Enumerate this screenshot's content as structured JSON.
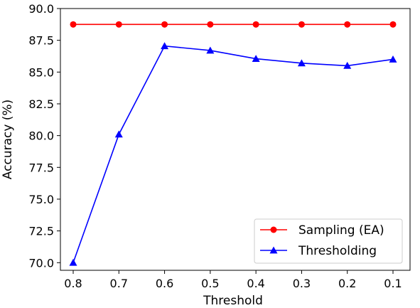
{
  "chart_data": {
    "type": "line",
    "xlabel": "Threshold",
    "ylabel": "Accuracy (%)",
    "categories": [
      "0.8",
      "0.7",
      "0.6",
      "0.5",
      "0.4",
      "0.3",
      "0.2",
      "0.1"
    ],
    "ylim": [
      69.4,
      90.0
    ],
    "yticks": [
      "70.0",
      "72.5",
      "75.0",
      "77.5",
      "80.0",
      "82.5",
      "85.0",
      "87.5",
      "90.0"
    ],
    "grid": false,
    "legend_position": "lower-right",
    "series": [
      {
        "name": "Sampling (EA)",
        "color": "#ff0000",
        "marker": "circle",
        "values": [
          88.75,
          88.75,
          88.75,
          88.75,
          88.75,
          88.75,
          88.75,
          88.75
        ]
      },
      {
        "name": "Thresholding",
        "color": "#0000ff",
        "marker": "triangle",
        "values": [
          70.0,
          80.1,
          87.05,
          86.7,
          86.05,
          85.7,
          85.5,
          86.0
        ]
      }
    ]
  }
}
